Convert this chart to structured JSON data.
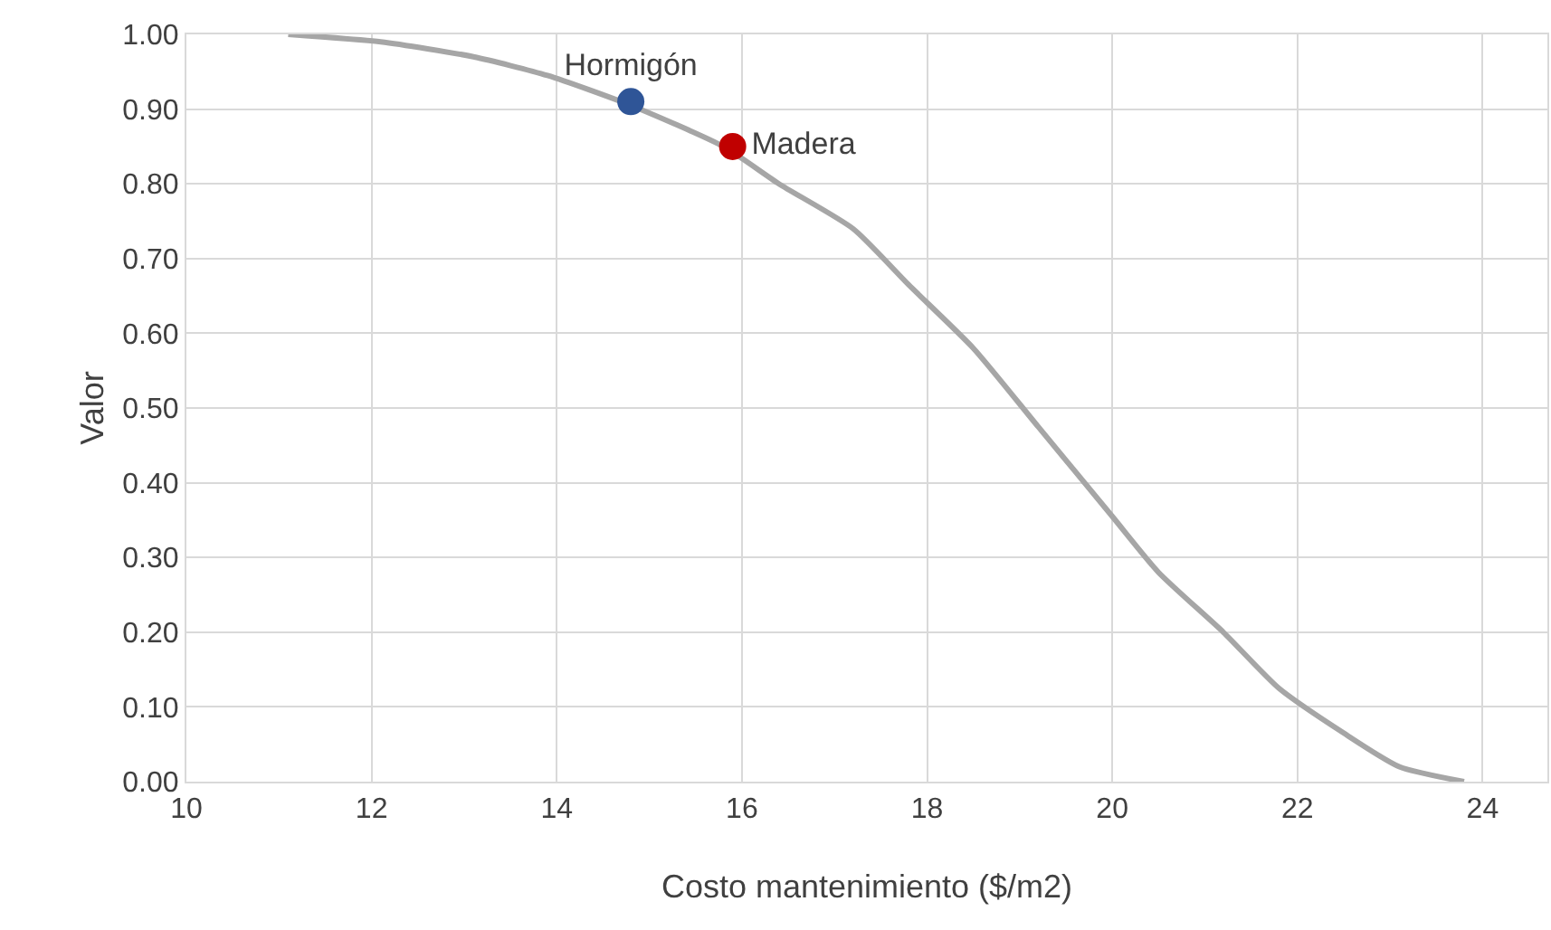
{
  "chart_data": {
    "type": "line",
    "xlabel": "Costo mantenimiento ($/m2)",
    "ylabel": "Valor",
    "xlim": [
      10,
      24.7
    ],
    "xticks": [
      10,
      12,
      14,
      16,
      18,
      20,
      22,
      24
    ],
    "ylim": [
      0,
      1
    ],
    "yticks": [
      {
        "value": 0,
        "label": "0.00"
      },
      {
        "value": 0.1,
        "label": "0.10"
      },
      {
        "value": 0.2,
        "label": "0.20"
      },
      {
        "value": 0.3,
        "label": "0.30"
      },
      {
        "value": 0.4,
        "label": "0.40"
      },
      {
        "value": 0.5,
        "label": "0.50"
      },
      {
        "value": 0.6,
        "label": "0.60"
      },
      {
        "value": 0.7,
        "label": "0.70"
      },
      {
        "value": 0.8,
        "label": "0.80"
      },
      {
        "value": 0.9,
        "label": "0.90"
      },
      {
        "value": 1,
        "label": "1.00"
      }
    ],
    "grid": true,
    "legend": false,
    "series": [
      {
        "type": "line",
        "color": "#a6a6a6",
        "marker": "none",
        "x": [
          11.1,
          12.1,
          13.1,
          13.9,
          14.8,
          15.8,
          16.4,
          17.2,
          17.8,
          18.5,
          19.2,
          20.0,
          20.5,
          21.2,
          21.8,
          22.5,
          23.1,
          23.8
        ],
        "values": [
          1.0,
          0.99,
          0.97,
          0.945,
          0.905,
          0.85,
          0.8,
          0.74,
          0.665,
          0.58,
          0.475,
          0.355,
          0.28,
          0.2,
          0.125,
          0.065,
          0.02,
          0.0
        ]
      },
      {
        "type": "scatter",
        "name": "Hormigón",
        "color": "#2f5597",
        "marker": "circle",
        "x": [
          14.8
        ],
        "values": [
          0.91
        ]
      },
      {
        "type": "scatter",
        "name": "Madera",
        "color": "#c00000",
        "marker": "circle",
        "x": [
          15.9
        ],
        "values": [
          0.85
        ]
      }
    ]
  }
}
